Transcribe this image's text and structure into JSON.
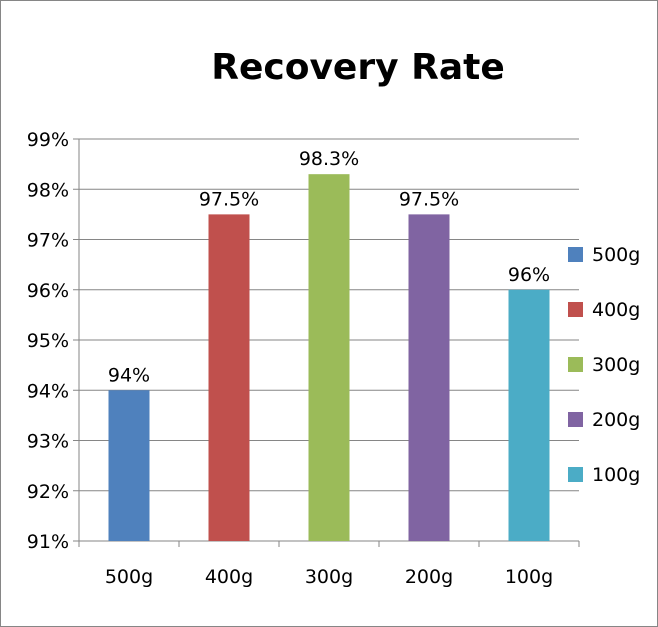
{
  "chart_data": {
    "type": "bar",
    "title": "Recovery Rate",
    "xlabel": "",
    "ylabel": "",
    "categories": [
      "500g",
      "400g",
      "300g",
      "200g",
      "100g"
    ],
    "values": [
      94,
      97.5,
      98.3,
      97.5,
      96
    ],
    "data_labels": [
      "94%",
      "97.5%",
      "98.3%",
      "97.5%",
      "96%"
    ],
    "colors": [
      "#4f81bd",
      "#c0504d",
      "#9bbb59",
      "#8064a2",
      "#4bacc6"
    ],
    "ylim": [
      91,
      99
    ],
    "yticks": [
      91,
      92,
      93,
      94,
      95,
      96,
      97,
      98,
      99
    ],
    "ytick_labels": [
      "91%",
      "92%",
      "93%",
      "94%",
      "95%",
      "96%",
      "97%",
      "98%",
      "99%"
    ],
    "legend": [
      "500g",
      "400g",
      "300g",
      "200g",
      "100g"
    ],
    "legend_position": "right",
    "grid": true
  }
}
